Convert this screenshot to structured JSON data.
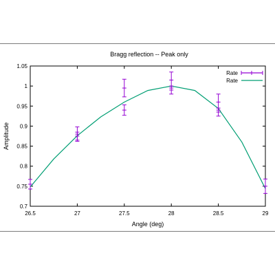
{
  "chart_data": {
    "type": "line",
    "title": "Bragg reflection -- Peak only",
    "xlabel": "Angle (deg)",
    "ylabel": "Amplitude",
    "xlim": [
      26.5,
      29
    ],
    "ylim": [
      0.7,
      1.05
    ],
    "x_ticks": [
      "26.5",
      "27",
      "27.5",
      "28",
      "28.5",
      "29"
    ],
    "y_ticks": [
      "0.7",
      "0.75",
      "0.8",
      "0.85",
      "0.9",
      "0.95",
      "1",
      "1.05"
    ],
    "legend_position": "top-right",
    "series": [
      {
        "name": "Rate",
        "style": "errorbars",
        "color": "#9400d3",
        "points": [
          {
            "x": 26.5,
            "y": 0.755,
            "err": 0.012
          },
          {
            "x": 29.0,
            "y": 0.75,
            "err": 0.018
          },
          {
            "x": 27.0,
            "y": 0.88,
            "err": 0.018
          },
          {
            "x": 27.0,
            "y": 0.875,
            "err": 0.01
          },
          {
            "x": 27.5,
            "y": 0.995,
            "err": 0.022
          },
          {
            "x": 27.5,
            "y": 0.94,
            "err": 0.013
          },
          {
            "x": 28.0,
            "y": 1.015,
            "err": 0.02
          },
          {
            "x": 28.0,
            "y": 0.99,
            "err": 0.01
          },
          {
            "x": 28.5,
            "y": 0.96,
            "err": 0.02
          },
          {
            "x": 28.5,
            "y": 0.935,
            "err": 0.01
          }
        ]
      },
      {
        "name": "Rate",
        "style": "line",
        "color": "#009e73",
        "x": [
          26.5,
          26.75,
          27.0,
          27.25,
          27.5,
          27.75,
          28.0,
          28.25,
          28.5,
          28.75,
          29.0
        ],
        "y": [
          0.748,
          0.818,
          0.876,
          0.923,
          0.96,
          0.989,
          1.0,
          0.989,
          0.944,
          0.86,
          0.744
        ]
      }
    ]
  }
}
